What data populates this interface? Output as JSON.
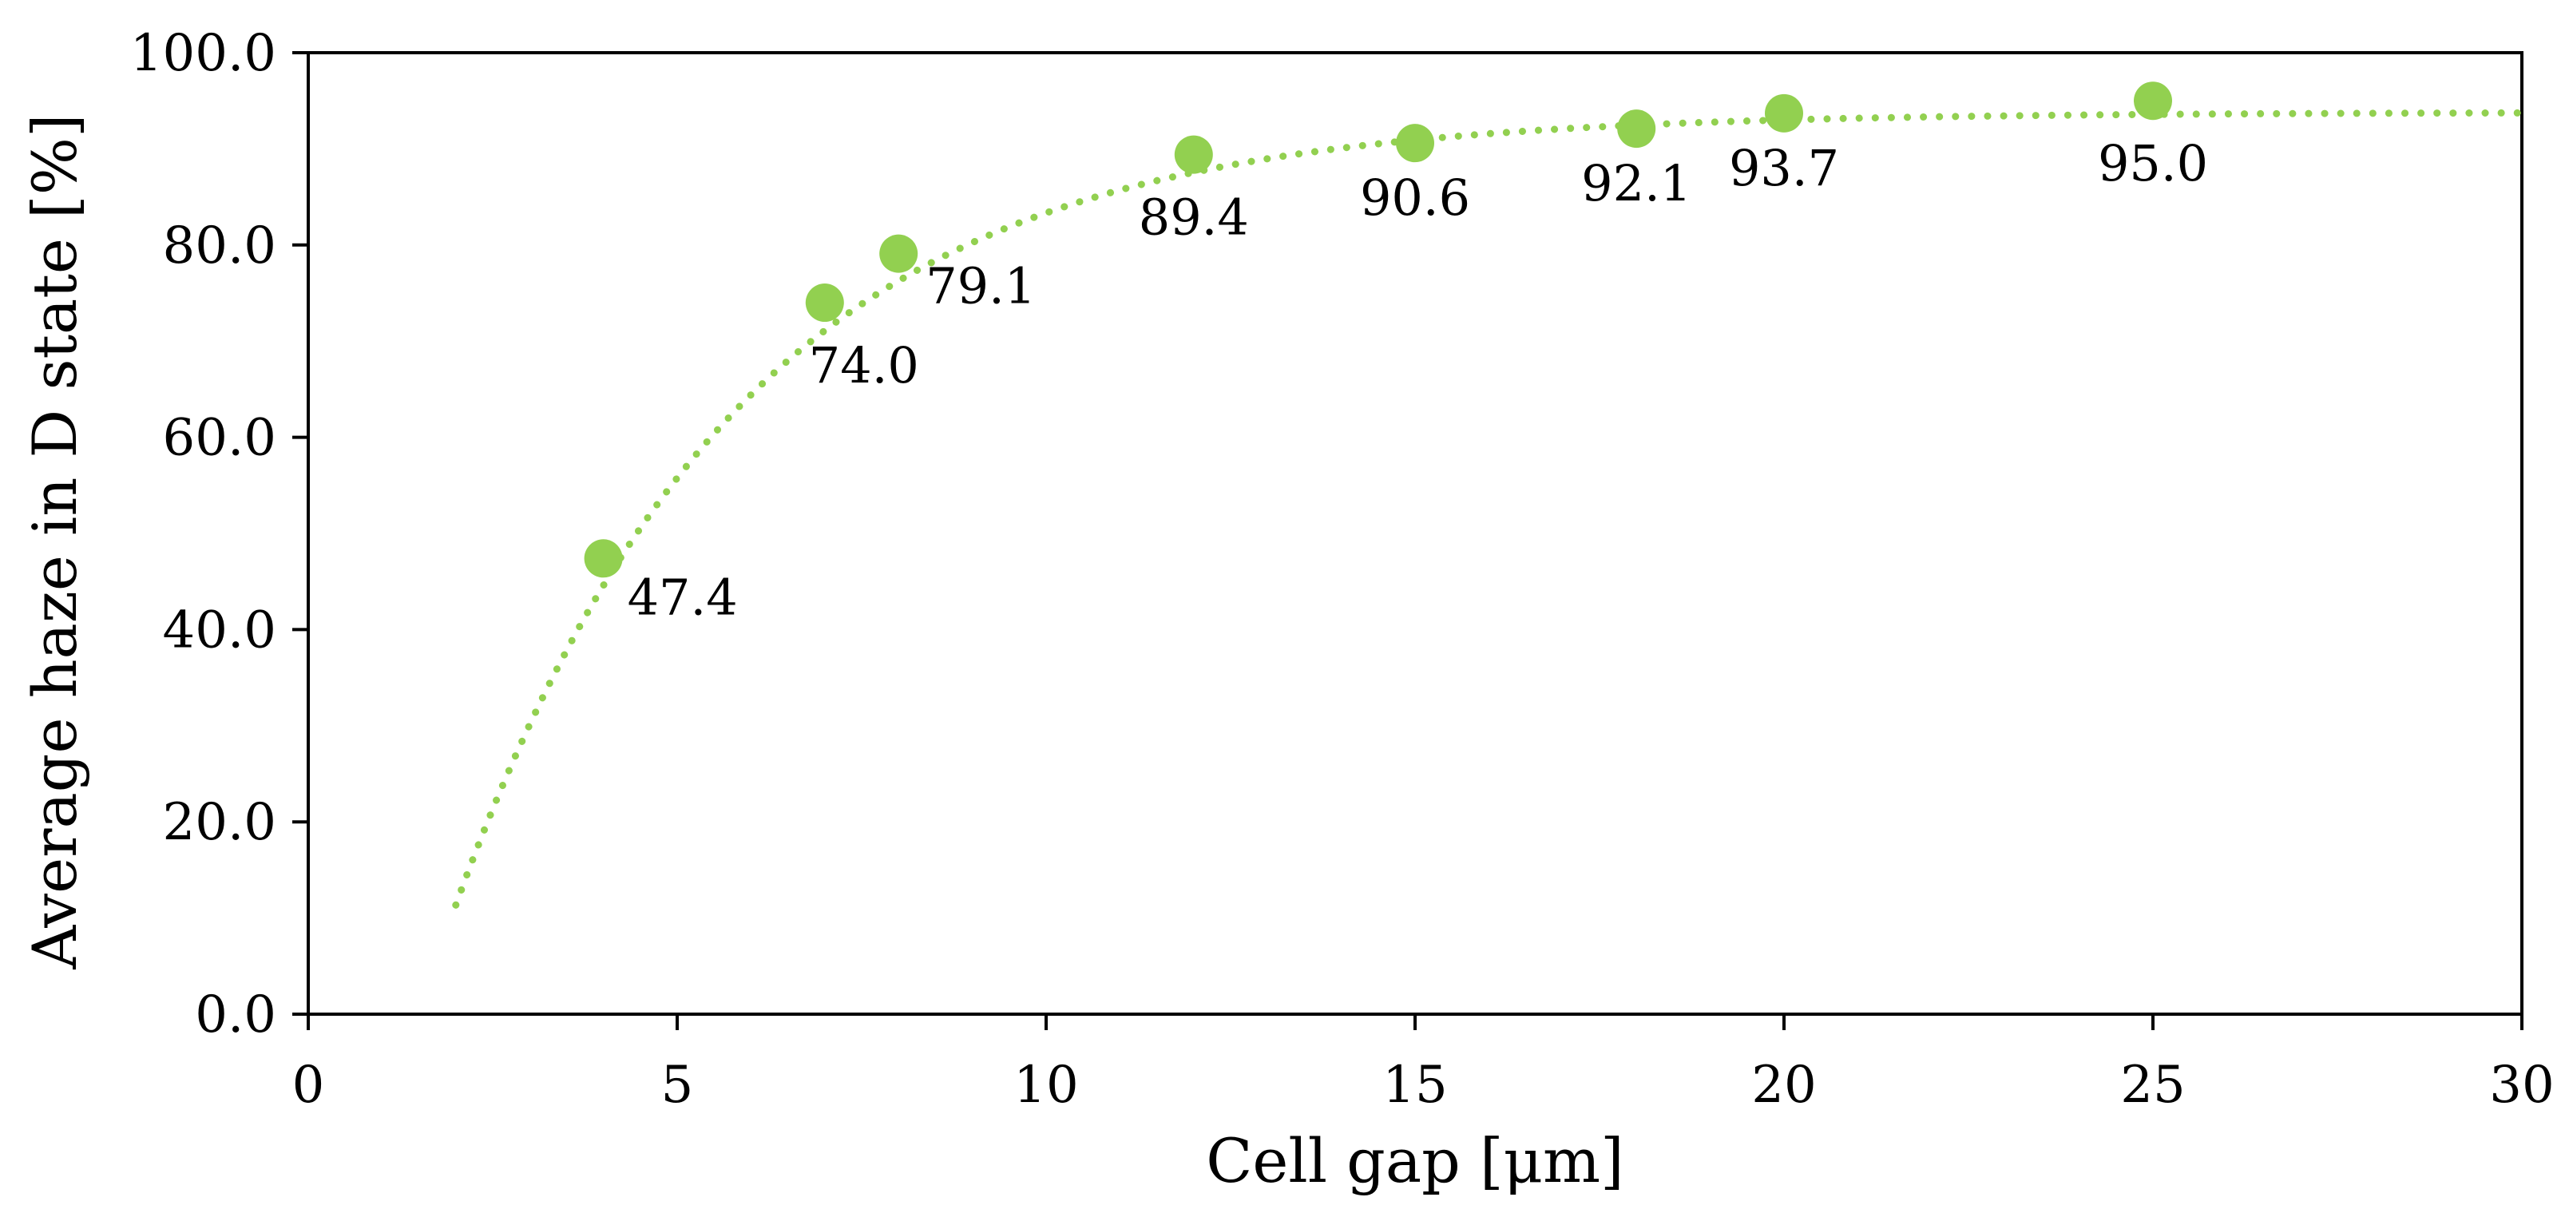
{
  "chart_data": {
    "type": "scatter",
    "title": "",
    "xlabel": "Cell gap [μm]",
    "ylabel": "Average haze in D state [%]",
    "xlim": [
      0,
      30
    ],
    "ylim": [
      0,
      100
    ],
    "x_ticks": [
      0,
      5,
      10,
      15,
      20,
      25,
      30
    ],
    "x_tick_labels": [
      "0",
      "5",
      "10",
      "15",
      "20",
      "25",
      "30"
    ],
    "y_ticks": [
      0,
      20,
      40,
      60,
      80,
      100
    ],
    "y_tick_labels": [
      "0.0",
      "20.0",
      "40.0",
      "60.0",
      "80.0",
      "100.0"
    ],
    "grid": false,
    "legend": "none",
    "series": [
      {
        "name": "Average haze",
        "color": "#92d050",
        "marker": "circle",
        "x": [
          4,
          7,
          8,
          12,
          15,
          18,
          20,
          25
        ],
        "y": [
          47.4,
          74.0,
          79.1,
          89.4,
          90.6,
          92.1,
          93.7,
          95.0
        ],
        "labels": [
          "47.4",
          "74.0",
          "79.1",
          "89.4",
          "90.6",
          "92.1",
          "93.7",
          "95.0"
        ]
      }
    ],
    "trendline": {
      "type": "exponential-saturation",
      "style": "dotted",
      "color": "#92d050",
      "x_range": [
        2,
        30
      ],
      "asymptote": 93.8,
      "rate": 0.258,
      "x_offset": 1.5
    }
  }
}
